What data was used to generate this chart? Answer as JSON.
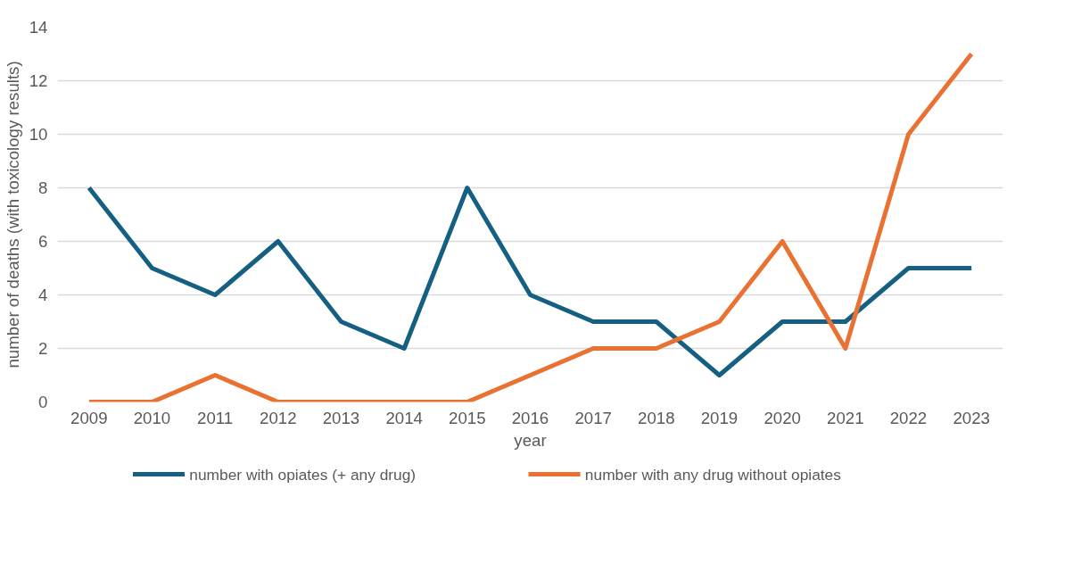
{
  "chart_data": {
    "type": "line",
    "xlabel": "year",
    "ylabel": "number of deaths (with toxicology results)",
    "categories": [
      "2009",
      "2010",
      "2011",
      "2012",
      "2013",
      "2014",
      "2015",
      "2016",
      "2017",
      "2018",
      "2019",
      "2020",
      "2021",
      "2022",
      "2023"
    ],
    "series": [
      {
        "name": "number with opiates (+ any drug)",
        "color": "#156082",
        "values": [
          8,
          5,
          4,
          6,
          3,
          2,
          8,
          4,
          3,
          3,
          1,
          3,
          3,
          5,
          5
        ]
      },
      {
        "name": "number with any drug without opiates",
        "color": "#e97132",
        "values": [
          0,
          0,
          1,
          0,
          0,
          0,
          0,
          1,
          2,
          2,
          3,
          6,
          2,
          10,
          13
        ]
      }
    ],
    "ylim": [
      0,
      14
    ],
    "yticks": [
      0,
      2,
      4,
      6,
      8,
      10,
      12,
      14
    ],
    "grid": "y",
    "legend": "bottom",
    "marker": "none",
    "line_style": "solid"
  }
}
